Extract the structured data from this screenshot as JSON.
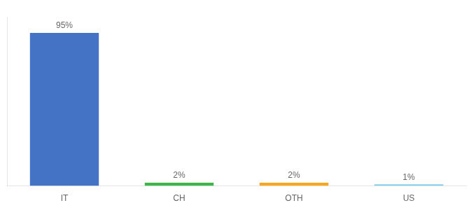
{
  "chart_data": {
    "type": "bar",
    "categories": [
      "IT",
      "CH",
      "OTH",
      "US"
    ],
    "values": [
      95,
      2,
      2,
      1
    ],
    "value_labels": [
      "95%",
      "2%",
      "2%",
      "1%"
    ],
    "data_labels": true,
    "colors": [
      "#4472C4",
      "#3CB54A",
      "#F5A623",
      "#87CEEB"
    ],
    "ylim": [
      0,
      105
    ],
    "grid": false,
    "tick_labels": "x"
  }
}
